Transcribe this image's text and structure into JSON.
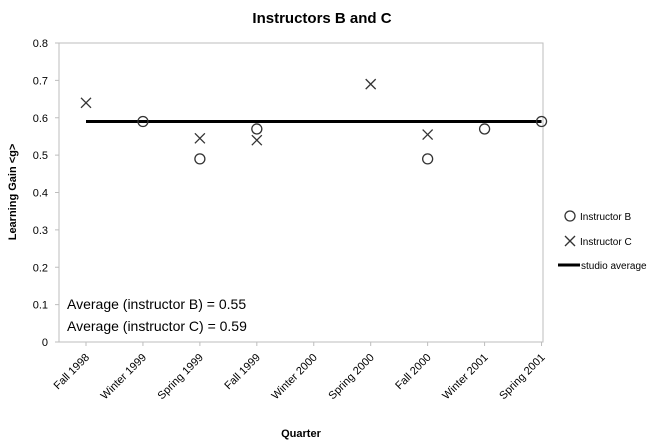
{
  "chart_data": {
    "type": "scatter",
    "title": "Instructors B and C",
    "xlabel": "Quarter",
    "ylabel": "Learning Gain <g>",
    "ylim": [
      0,
      0.8
    ],
    "yticks": [
      "0",
      "0.1",
      "0.2",
      "0.3",
      "0.4",
      "0.5",
      "0.6",
      "0.7",
      "0.8"
    ],
    "categories": [
      "Fall 1998",
      "Winter 1999",
      "Spring 1999",
      "Fall 1999",
      "Winter 2000",
      "Spring 2000",
      "Fall 2000",
      "Winter 2001",
      "Spring 2001"
    ],
    "series": [
      {
        "name": "Instructor B",
        "marker": "circle",
        "points": [
          {
            "x": "Winter 1999",
            "y": 0.59
          },
          {
            "x": "Spring 1999",
            "y": 0.49
          },
          {
            "x": "Fall 1999",
            "y": 0.57
          },
          {
            "x": "Fall 2000",
            "y": 0.49
          },
          {
            "x": "Winter 2001",
            "y": 0.57
          },
          {
            "x": "Spring 2001",
            "y": 0.59
          }
        ]
      },
      {
        "name": "Instructor C",
        "marker": "x",
        "points": [
          {
            "x": "Fall 1998",
            "y": 0.64
          },
          {
            "x": "Spring 1999",
            "y": 0.545
          },
          {
            "x": "Fall 1999",
            "y": 0.54
          },
          {
            "x": "Spring 2000",
            "y": 0.69
          },
          {
            "x": "Fall 2000",
            "y": 0.555
          }
        ]
      },
      {
        "name": "studio average",
        "marker": "line",
        "value": 0.59
      }
    ],
    "annotations": [
      "Average (instructor B)  = 0.55",
      "Average (instructor C)  = 0.59"
    ],
    "legend_position": "right",
    "grid": false
  }
}
